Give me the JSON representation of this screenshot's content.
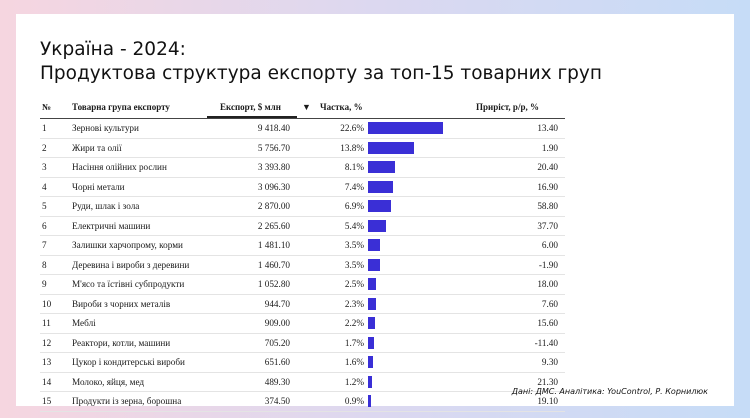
{
  "title_line1": "Україна - 2024:",
  "title_line2": "Продуктова структура експорту за топ-15 товарних груп",
  "source": "Дані: ДМС. Аналітика: YouControl, Р. Корнилюк",
  "colors": {
    "bar": "#3a2fd6"
  },
  "columns": {
    "num": "№",
    "name": "Товарна група експорту",
    "export": "Експорт, $ млн",
    "sort_arrow": "▼",
    "share": "Частка, %",
    "growth": "Приріст, р/р, %"
  },
  "chart_data": {
    "type": "table",
    "bar_max_share": 22.6,
    "rows": [
      {
        "num": "1",
        "name": "Зернові культури",
        "export": "9 418.40",
        "share": "22.6%",
        "share_value": 22.6,
        "growth": "13.40"
      },
      {
        "num": "2",
        "name": "Жири та олії",
        "export": "5 756.70",
        "share": "13.8%",
        "share_value": 13.8,
        "growth": "1.90"
      },
      {
        "num": "3",
        "name": "Насіння олійних рослин",
        "export": "3 393.80",
        "share": "8.1%",
        "share_value": 8.1,
        "growth": "20.40"
      },
      {
        "num": "4",
        "name": "Чорні метали",
        "export": "3 096.30",
        "share": "7.4%",
        "share_value": 7.4,
        "growth": "16.90"
      },
      {
        "num": "5",
        "name": "Руди, шлак і зола",
        "export": "2 870.00",
        "share": "6.9%",
        "share_value": 6.9,
        "growth": "58.80"
      },
      {
        "num": "6",
        "name": "Електричні машини",
        "export": "2 265.60",
        "share": "5.4%",
        "share_value": 5.4,
        "growth": "37.70"
      },
      {
        "num": "7",
        "name": "Залишки харчопрому, корми",
        "export": "1 481.10",
        "share": "3.5%",
        "share_value": 3.5,
        "growth": "6.00"
      },
      {
        "num": "8",
        "name": "Деревина і вироби з деревини",
        "export": "1 460.70",
        "share": "3.5%",
        "share_value": 3.5,
        "growth": "-1.90"
      },
      {
        "num": "9",
        "name": "М'ясо та їстівні субпродукти",
        "export": "1 052.80",
        "share": "2.5%",
        "share_value": 2.5,
        "growth": "18.00"
      },
      {
        "num": "10",
        "name": "Вироби з чорних металів",
        "export": "944.70",
        "share": "2.3%",
        "share_value": 2.3,
        "growth": "7.60"
      },
      {
        "num": "11",
        "name": "Меблі",
        "export": "909.00",
        "share": "2.2%",
        "share_value": 2.2,
        "growth": "15.60"
      },
      {
        "num": "12",
        "name": "Реактори, котли, машини",
        "export": "705.20",
        "share": "1.7%",
        "share_value": 1.7,
        "growth": "-11.40"
      },
      {
        "num": "13",
        "name": "Цукор і кондитерські вироби",
        "export": "651.60",
        "share": "1.6%",
        "share_value": 1.6,
        "growth": "9.30"
      },
      {
        "num": "14",
        "name": "Молоко, яйця, мед",
        "export": "489.30",
        "share": "1.2%",
        "share_value": 1.2,
        "growth": "21.30"
      },
      {
        "num": "15",
        "name": "Продукти із зерна, борошна",
        "export": "374.50",
        "share": "0.9%",
        "share_value": 0.9,
        "growth": "19.10"
      }
    ]
  }
}
